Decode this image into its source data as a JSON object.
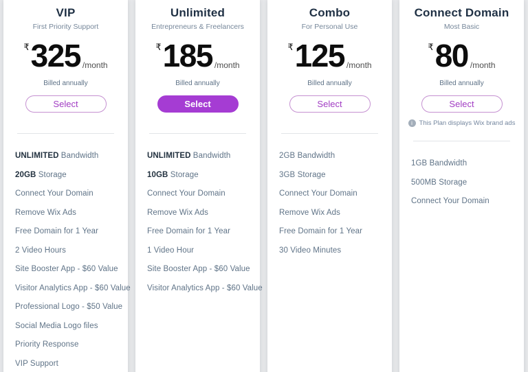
{
  "currency_symbol": "₹",
  "price_period": "/month",
  "billing_note": "Billed annually",
  "select_label": "Select",
  "colors": {
    "accent_purple": "#a53cd3",
    "outline_purple": "#c590d1",
    "select_text_purple": "#a13cc3",
    "title_text": "#1f3044",
    "feature_text": "#5f7387",
    "page_background": "#e9eaec"
  },
  "plans": [
    {
      "title": "VIP",
      "subtitle": "First Priority Support",
      "price": "325",
      "highlighted": false,
      "ad_note": "",
      "features": [
        {
          "bold": "UNLIMITED",
          "text": "Bandwidth"
        },
        {
          "bold": "20GB",
          "text": "Storage"
        },
        {
          "bold": "",
          "text": "Connect Your Domain"
        },
        {
          "bold": "",
          "text": "Remove Wix Ads"
        },
        {
          "bold": "",
          "text": "Free Domain for 1 Year"
        },
        {
          "bold": "",
          "text": "2 Video Hours"
        },
        {
          "bold": "",
          "text": "Site Booster App - $60 Value"
        },
        {
          "bold": "",
          "text": "Visitor Analytics App - $60 Value"
        },
        {
          "bold": "",
          "text": "Professional Logo - $50 Value"
        },
        {
          "bold": "",
          "text": "Social Media Logo files"
        },
        {
          "bold": "",
          "text": "Priority Response"
        },
        {
          "bold": "",
          "text": "VIP Support"
        }
      ]
    },
    {
      "title": "Unlimited",
      "subtitle": "Entrepreneurs & Freelancers",
      "price": "185",
      "highlighted": true,
      "ad_note": "",
      "features": [
        {
          "bold": "UNLIMITED",
          "text": "Bandwidth"
        },
        {
          "bold": "10GB",
          "text": "Storage"
        },
        {
          "bold": "",
          "text": "Connect Your Domain"
        },
        {
          "bold": "",
          "text": "Remove Wix Ads"
        },
        {
          "bold": "",
          "text": "Free Domain for 1 Year"
        },
        {
          "bold": "",
          "text": "1 Video Hour"
        },
        {
          "bold": "",
          "text": "Site Booster App - $60 Value"
        },
        {
          "bold": "",
          "text": "Visitor Analytics App - $60 Value"
        }
      ]
    },
    {
      "title": "Combo",
      "subtitle": "For Personal Use",
      "price": "125",
      "highlighted": false,
      "ad_note": "",
      "features": [
        {
          "bold": "",
          "text": "2GB Bandwidth"
        },
        {
          "bold": "",
          "text": "3GB Storage"
        },
        {
          "bold": "",
          "text": "Connect Your Domain"
        },
        {
          "bold": "",
          "text": "Remove Wix Ads"
        },
        {
          "bold": "",
          "text": "Free Domain for 1 Year"
        },
        {
          "bold": "",
          "text": "30 Video Minutes"
        }
      ]
    },
    {
      "title": "Connect Domain",
      "subtitle": "Most Basic",
      "price": "80",
      "highlighted": false,
      "ad_note": "This Plan displays Wix brand ads",
      "features": [
        {
          "bold": "",
          "text": "1GB Bandwidth"
        },
        {
          "bold": "",
          "text": "500MB Storage"
        },
        {
          "bold": "",
          "text": "Connect Your Domain"
        }
      ]
    }
  ]
}
